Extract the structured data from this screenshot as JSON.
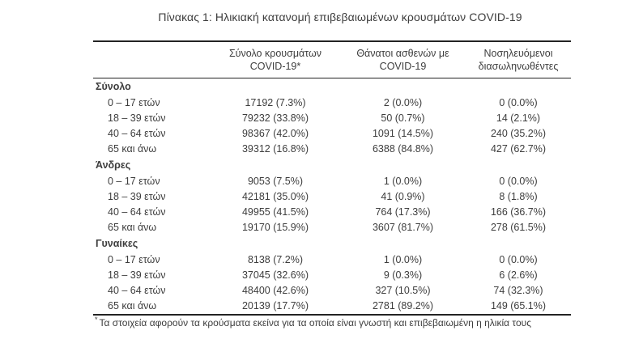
{
  "title": "Πίνακας 1: Ηλικιακή κατανομή επιβεβαιωμένων κρουσμάτων COVID-19",
  "table": {
    "columns": [
      {
        "line1": "Σύνολο κρουσμάτων",
        "line2": "COVID-19*"
      },
      {
        "line1": "Θάνατοι ασθενών με",
        "line2": "COVID-19"
      },
      {
        "line1": "Νοσηλευόμενοι",
        "line2": "διασωληνωθέντες"
      }
    ],
    "sections": [
      {
        "label": "Σύνολο",
        "rows": [
          {
            "label": "0 – 17 ετών",
            "cases": "17192 (7.3%)",
            "deaths": "2 (0.0%)",
            "intubated": "0 (0.0%)"
          },
          {
            "label": "18 – 39 ετών",
            "cases": "79232 (33.8%)",
            "deaths": "50 (0.7%)",
            "intubated": "14 (2.1%)"
          },
          {
            "label": "40 – 64 ετών",
            "cases": "98367 (42.0%)",
            "deaths": "1091 (14.5%)",
            "intubated": "240 (35.2%)"
          },
          {
            "label": "65 και άνω",
            "cases": "39312 (16.8%)",
            "deaths": "6388 (84.8%)",
            "intubated": "427 (62.7%)"
          }
        ]
      },
      {
        "label": "Άνδρες",
        "rows": [
          {
            "label": "0 – 17 ετών",
            "cases": "9053 (7.5%)",
            "deaths": "1 (0.0%)",
            "intubated": "0 (0.0%)"
          },
          {
            "label": "18 – 39 ετών",
            "cases": "42181 (35.0%)",
            "deaths": "41 (0.9%)",
            "intubated": "8 (1.8%)"
          },
          {
            "label": "40 – 64 ετών",
            "cases": "49955 (41.5%)",
            "deaths": "764 (17.3%)",
            "intubated": "166 (36.7%)"
          },
          {
            "label": "65 και άνω",
            "cases": "19170 (15.9%)",
            "deaths": "3607 (81.7%)",
            "intubated": "278 (61.5%)"
          }
        ]
      },
      {
        "label": "Γυναίκες",
        "rows": [
          {
            "label": "0 – 17 ετών",
            "cases": "8138 (7.2%)",
            "deaths": "1 (0.0%)",
            "intubated": "0 (0.0%)"
          },
          {
            "label": "18 – 39 ετών",
            "cases": "37045 (32.6%)",
            "deaths": "9 (0.3%)",
            "intubated": "6 (2.6%)"
          },
          {
            "label": "40 – 64 ετών",
            "cases": "48400 (42.6%)",
            "deaths": "327 (10.5%)",
            "intubated": "74 (32.3%)"
          },
          {
            "label": "65 και άνω",
            "cases": "20139 (17.7%)",
            "deaths": "2781 (89.2%)",
            "intubated": "149 (65.1%)"
          }
        ]
      }
    ]
  },
  "footnote": {
    "marker": "*",
    "text": "Τα στοιχεία αφορούν τα κρούσματα εκείνα για τα οποία είναι γνωστή και επιβεβαιωμένη η ηλικία τους"
  },
  "colors": {
    "background": "#ffffff",
    "text": "#3d3d3d",
    "rule": "#232323"
  }
}
